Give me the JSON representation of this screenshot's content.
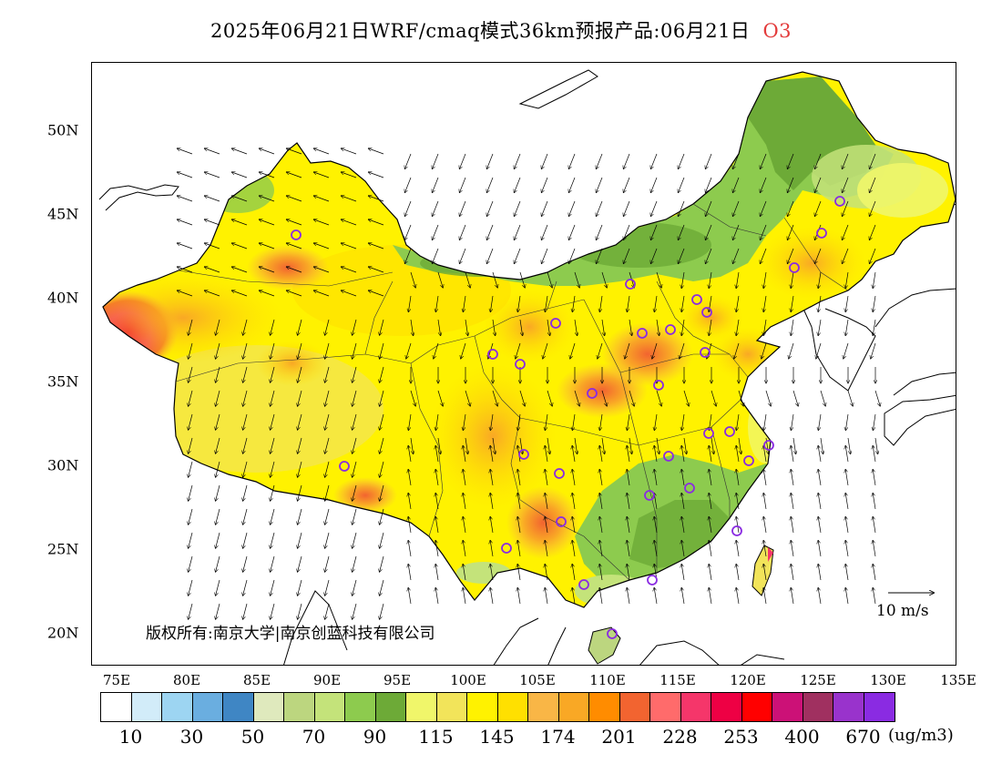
{
  "title": {
    "text": "2025年06月21日WRF/cmaq模式36km预报产品:06月21日",
    "species": "O3"
  },
  "lat_labels": [
    "50N",
    "45N",
    "40N",
    "35N",
    "30N",
    "25N",
    "20N"
  ],
  "lon_labels": [
    "75E",
    "80E",
    "85E",
    "90E",
    "95E",
    "100E",
    "105E",
    "110E",
    "115E",
    "120E",
    "125E",
    "130E",
    "135E"
  ],
  "copyright": "版权所有:南京大学|南京创蓝科技有限公司",
  "wind_scale_label": "10 m/s",
  "legend": {
    "colors": [
      "#ffffff",
      "#d2ecf9",
      "#9dd5f2",
      "#6aaee0",
      "#3f86c4",
      "#dfe9bd",
      "#bcd67f",
      "#c4e37a",
      "#8dcb4e",
      "#6daa37",
      "#f0f66a",
      "#f2e45a",
      "#fff200",
      "#ffe000",
      "#f9b646",
      "#f9a825",
      "#ff8c00",
      "#f26430",
      "#ff6b6b",
      "#f5366a",
      "#ee0044",
      "#ff0000",
      "#cc1177",
      "#a03060",
      "#9933cc",
      "#8a2be2"
    ],
    "labels": [
      "10",
      "30",
      "50",
      "70",
      "90",
      "115",
      "145",
      "174",
      "201",
      "228",
      "253",
      "400",
      "670"
    ],
    "unit": "(ug/m3)"
  },
  "map": {
    "region": "China",
    "lon_range": [
      73,
      135
    ],
    "lat_range": [
      18,
      54
    ],
    "variable": "O3",
    "overlay": "wind vectors",
    "city_markers": [
      "乌鲁木齐",
      "拉萨",
      "西宁",
      "兰州",
      "银川",
      "呼和浩特",
      "北京",
      "天津",
      "石家庄",
      "太原",
      "济南",
      "郑州",
      "西安",
      "成都",
      "重庆",
      "贵阳",
      "昆明",
      "南宁",
      "广州",
      "海口",
      "长沙",
      "武汉",
      "南昌",
      "福州",
      "杭州",
      "上海",
      "南京",
      "合肥",
      "沈阳",
      "长春",
      "哈尔滨"
    ]
  }
}
